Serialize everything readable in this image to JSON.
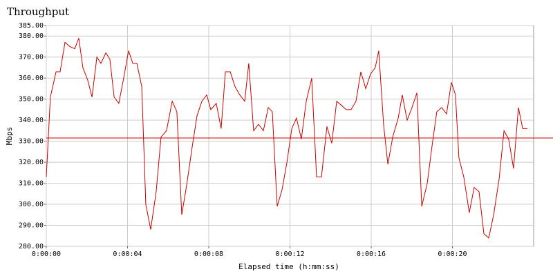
{
  "chart_data": {
    "type": "line",
    "title": "Throughput",
    "x_label": "Elapsed time (h:mm:ss)",
    "y_label": "Mbps",
    "xlim": [
      0,
      24
    ],
    "ylim": [
      280,
      385
    ],
    "xticks": [
      {
        "value": 0,
        "label": "0:00:00"
      },
      {
        "value": 4,
        "label": "0:00:04"
      },
      {
        "value": 8,
        "label": "0:00:08"
      },
      {
        "value": 12,
        "label": "0:00:12"
      },
      {
        "value": 16,
        "label": "0:00:16"
      },
      {
        "value": 20,
        "label": "0:00:20"
      }
    ],
    "yticks": [
      {
        "value": 280,
        "label": "280.00"
      },
      {
        "value": 290,
        "label": "290.00"
      },
      {
        "value": 300,
        "label": "300.00"
      },
      {
        "value": 310,
        "label": "310.00"
      },
      {
        "value": 320,
        "label": "320.00"
      },
      {
        "value": 330,
        "label": "330.00"
      },
      {
        "value": 340,
        "label": "340.00"
      },
      {
        "value": 350,
        "label": "350.00"
      },
      {
        "value": 360,
        "label": "360.00"
      },
      {
        "value": 370,
        "label": "370.00"
      },
      {
        "value": 380,
        "label": "380.00"
      },
      {
        "value": 385,
        "label": "385.00"
      }
    ],
    "grid": true,
    "color": "#cc0000",
    "hline": 331.5,
    "x": [
      0,
      0.2,
      0.48,
      0.68,
      0.92,
      1.16,
      1.4,
      1.6,
      1.8,
      2.04,
      2.25,
      2.49,
      2.69,
      2.93,
      3.13,
      3.34,
      3.57,
      3.81,
      4.05,
      4.26,
      4.46,
      4.7,
      4.9,
      5.14,
      5.41,
      5.65,
      5.92,
      6.2,
      6.43,
      6.67,
      6.91,
      7.18,
      7.42,
      7.66,
      7.9,
      8.1,
      8.37,
      8.61,
      8.82,
      9.06,
      9.29,
      9.53,
      9.77,
      9.97,
      10.21,
      10.45,
      10.69,
      10.93,
      11.13,
      11.37,
      11.61,
      11.85,
      12.09,
      12.32,
      12.56,
      12.8,
      13.07,
      13.31,
      13.55,
      13.82,
      14.06,
      14.3,
      14.54,
      14.77,
      15.01,
      15.25,
      15.49,
      15.73,
      15.97,
      16.2,
      16.37,
      16.61,
      16.82,
      17.06,
      17.33,
      17.53,
      17.77,
      18.01,
      18.25,
      18.49,
      18.76,
      19.0,
      19.23,
      19.47,
      19.71,
      19.95,
      20.15,
      20.32,
      20.56,
      20.83,
      21.07,
      21.31,
      21.55,
      21.79,
      22.03,
      22.3,
      22.54,
      22.77,
      23.01,
      23.25,
      23.46,
      23.69
    ],
    "values": [
      313,
      351,
      363,
      363,
      377,
      375,
      374,
      379,
      365,
      359,
      351,
      370,
      367,
      372,
      369,
      351,
      348,
      360,
      373,
      367,
      367,
      356,
      300,
      288,
      306,
      332,
      335,
      349,
      344,
      295,
      309,
      327,
      342,
      349,
      352,
      345,
      348,
      336,
      363,
      363,
      356,
      352,
      349,
      367,
      335,
      338,
      335,
      346,
      344,
      299,
      307,
      320,
      336,
      341,
      331,
      349,
      360,
      313,
      313,
      337,
      329,
      349,
      347,
      345,
      345,
      349,
      363,
      355,
      362,
      365,
      373,
      338,
      319,
      332,
      341,
      352,
      340,
      346,
      353,
      299,
      310,
      328,
      344,
      346,
      343,
      358,
      352,
      322,
      313,
      296,
      308,
      306,
      286,
      284,
      295,
      312,
      335,
      331,
      317,
      346,
      336,
      336
    ]
  }
}
